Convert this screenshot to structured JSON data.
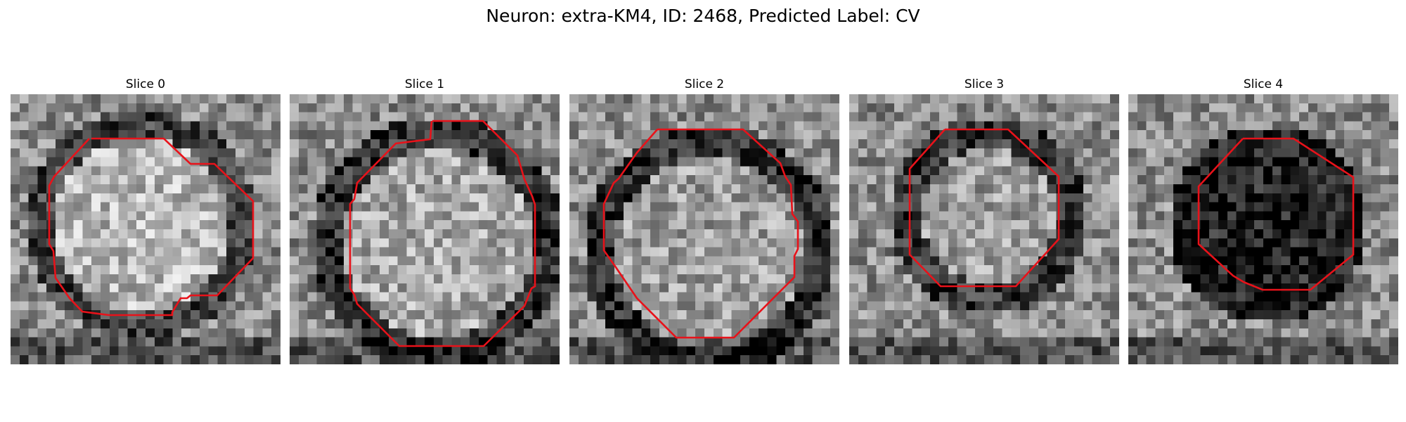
{
  "figure": {
    "title": "Neuron: extra-KM4, ID: 2468, Predicted Label: CV"
  },
  "panels": [
    {
      "title": "Slice 0",
      "interior_brightness": 0.72,
      "ring_darkness": 0.25
    },
    {
      "title": "Slice 1",
      "interior_brightness": 0.66,
      "ring_darkness": 0.2
    },
    {
      "title": "Slice 2",
      "interior_brightness": 0.62,
      "ring_darkness": 0.18
    },
    {
      "title": "Slice 3",
      "interior_brightness": 0.62,
      "ring_darkness": 0.22
    },
    {
      "title": "Slice 4",
      "interior_brightness": 0.12,
      "ring_darkness": 0.1
    }
  ],
  "colors": {
    "outline": "#e8121a",
    "background": "#ffffff"
  }
}
